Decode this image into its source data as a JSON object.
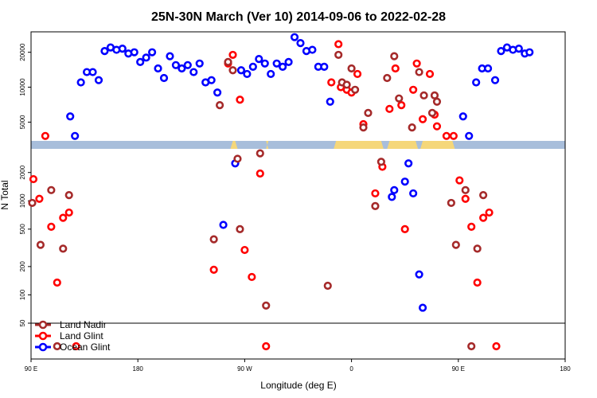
{
  "chart_data": {
    "type": "scatter",
    "title": "25N-30N March (Ver 10)   2014-09-06 to 2022-02-28",
    "xlabel": "Longitude (deg E)",
    "ylabel": "N Total",
    "x_ticks": [
      {
        "value": 90,
        "label": "90 E"
      },
      {
        "value": 180,
        "label": "180"
      },
      {
        "value": 270,
        "label": "90 W"
      },
      {
        "value": 360,
        "label": "0"
      },
      {
        "value": 450,
        "label": "90 E"
      },
      {
        "value": 540,
        "label": "180"
      }
    ],
    "xlim": [
      90,
      540
    ],
    "upper_panel": {
      "yscale": "log",
      "ylim": [
        3500,
        30000
      ],
      "ticks": [
        5000,
        10000,
        20000
      ]
    },
    "lower_panel": {
      "yscale": "log",
      "ylim": [
        50,
        3500
      ],
      "ticks": [
        50,
        100,
        200,
        500,
        1000,
        2000
      ]
    },
    "below_panel": {
      "note": "points below 50 drawn in bottom strip"
    },
    "colors": {
      "land_nadir": "#a52a2a",
      "land_glint": "#ff0000",
      "ocean_glint": "#0000ff",
      "band_ocean": "#a8bedb",
      "band_land": "#f5d77a"
    },
    "land_band_ranges": [
      [
        258,
        264
      ],
      [
        288,
        290
      ],
      [
        345,
        387
      ],
      [
        390,
        416
      ],
      [
        418,
        447
      ]
    ],
    "legend": {
      "position": "bottom-left",
      "entries": [
        "Land Nadir",
        "Land Glint",
        "Ocean Glint"
      ]
    },
    "series": [
      {
        "name": "Ocean Glint",
        "color": "#0000ff",
        "points": [
          [
            123,
            5600
          ],
          [
            127,
            3800
          ],
          [
            132,
            11000
          ],
          [
            137,
            13500
          ],
          [
            142,
            13500
          ],
          [
            147,
            11500
          ],
          [
            152,
            20500
          ],
          [
            157,
            22000
          ],
          [
            162,
            21000
          ],
          [
            167,
            21500
          ],
          [
            172,
            19500
          ],
          [
            177,
            20000
          ],
          [
            182,
            16500
          ],
          [
            187,
            18000
          ],
          [
            192,
            20000
          ],
          [
            197,
            14500
          ],
          [
            202,
            12000
          ],
          [
            207,
            18500
          ],
          [
            212,
            15500
          ],
          [
            217,
            14500
          ],
          [
            222,
            15500
          ],
          [
            227,
            13500
          ],
          [
            232,
            16000
          ],
          [
            237,
            11000
          ],
          [
            242,
            11500
          ],
          [
            247,
            9000
          ],
          [
            252,
            555
          ],
          [
            262,
            2500
          ],
          [
            267,
            14000
          ],
          [
            272,
            13000
          ],
          [
            277,
            15000
          ],
          [
            282,
            17500
          ],
          [
            287,
            16000
          ],
          [
            292,
            13000
          ],
          [
            297,
            16000
          ],
          [
            302,
            15000
          ],
          [
            307,
            16500
          ],
          [
            312,
            27000
          ],
          [
            317,
            24000
          ],
          [
            322,
            20500
          ],
          [
            327,
            21000
          ],
          [
            332,
            15000
          ],
          [
            337,
            15000
          ],
          [
            342,
            7500
          ],
          [
            394,
            1100
          ],
          [
            396,
            1300
          ],
          [
            405,
            1600
          ],
          [
            408,
            2500
          ],
          [
            412,
            1200
          ],
          [
            417,
            165
          ],
          [
            420,
            73
          ],
          [
            454,
            5600
          ],
          [
            459,
            3800
          ],
          [
            465,
            11000
          ],
          [
            470,
            14500
          ],
          [
            475,
            14500
          ],
          [
            481,
            11500
          ],
          [
            486,
            20500
          ],
          [
            491,
            22000
          ],
          [
            496,
            21000
          ],
          [
            501,
            21500
          ],
          [
            506,
            19500
          ],
          [
            510,
            20000
          ]
        ]
      },
      {
        "name": "Land Glint",
        "color": "#ff0000",
        "points": [
          [
            92,
            1700
          ],
          [
            97,
            1050
          ],
          [
            102,
            3800
          ],
          [
            107,
            530
          ],
          [
            112,
            135
          ],
          [
            117,
            660
          ],
          [
            122,
            750
          ],
          [
            128,
            37
          ],
          [
            244,
            185
          ],
          [
            256,
            16000
          ],
          [
            260,
            19000
          ],
          [
            266,
            7800
          ],
          [
            270,
            300
          ],
          [
            276,
            155
          ],
          [
            283,
            1950
          ],
          [
            288,
            35
          ],
          [
            343,
            11000
          ],
          [
            349,
            23500
          ],
          [
            351,
            10000
          ],
          [
            356,
            9500
          ],
          [
            360,
            9000
          ],
          [
            365,
            13000
          ],
          [
            370,
            4800
          ],
          [
            380,
            1200
          ],
          [
            386,
            2300
          ],
          [
            392,
            6500
          ],
          [
            397,
            14500
          ],
          [
            402,
            7000
          ],
          [
            405,
            500
          ],
          [
            412,
            9500
          ],
          [
            415,
            16000
          ],
          [
            420,
            5300
          ],
          [
            426,
            13000
          ],
          [
            430,
            5800
          ],
          [
            432,
            4600
          ],
          [
            440,
            3800
          ],
          [
            446,
            3800
          ],
          [
            451,
            1650
          ],
          [
            456,
            1050
          ],
          [
            461,
            530
          ],
          [
            466,
            135
          ],
          [
            471,
            660
          ],
          [
            476,
            750
          ],
          [
            482,
            37
          ]
        ]
      },
      {
        "name": "Land Nadir",
        "color": "#a52a2a",
        "points": [
          [
            91,
            950
          ],
          [
            98,
            340
          ],
          [
            107,
            1300
          ],
          [
            112,
            35
          ],
          [
            117,
            310
          ],
          [
            122,
            1150
          ],
          [
            244,
            390
          ],
          [
            249,
            7000
          ],
          [
            256,
            16500
          ],
          [
            260,
            14000
          ],
          [
            264,
            2800
          ],
          [
            266,
            500
          ],
          [
            283,
            3200
          ],
          [
            288,
            77
          ],
          [
            340,
            125
          ],
          [
            349,
            19000
          ],
          [
            352,
            11000
          ],
          [
            356,
            10500
          ],
          [
            360,
            14500
          ],
          [
            363,
            9500
          ],
          [
            370,
            4500
          ],
          [
            374,
            6000
          ],
          [
            380,
            880
          ],
          [
            385,
            2600
          ],
          [
            390,
            12000
          ],
          [
            396,
            18500
          ],
          [
            400,
            8000
          ],
          [
            411,
            4500
          ],
          [
            417,
            13500
          ],
          [
            421,
            8500
          ],
          [
            428,
            6000
          ],
          [
            430,
            8500
          ],
          [
            432,
            7500
          ],
          [
            444,
            950
          ],
          [
            448,
            340
          ],
          [
            456,
            1300
          ],
          [
            461,
            35
          ],
          [
            466,
            310
          ],
          [
            471,
            1150
          ]
        ]
      }
    ]
  }
}
